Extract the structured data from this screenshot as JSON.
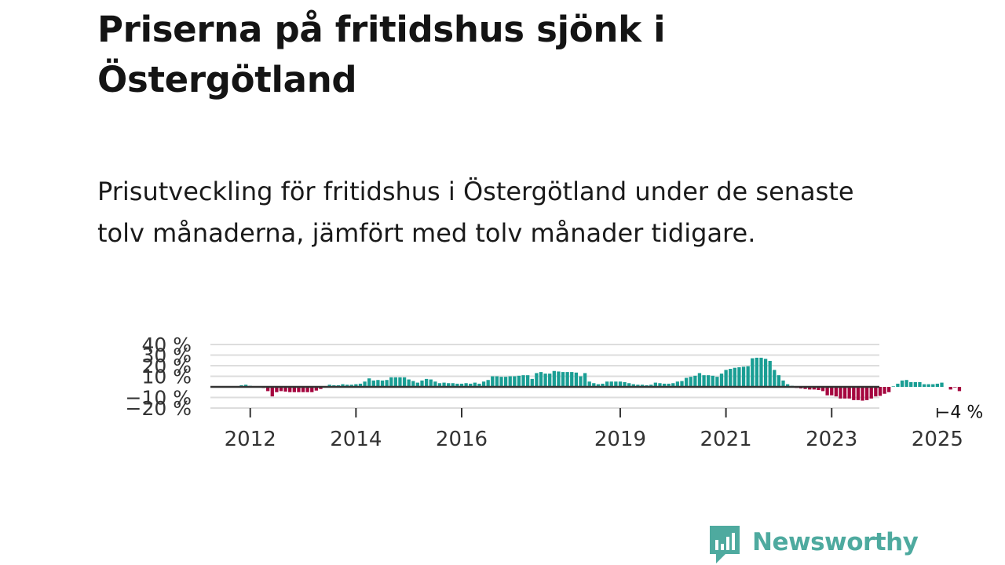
{
  "title": "Priserna på fritidshus sjönk i Östergötland",
  "subtitle": "Prisutveckling för fritidshus i Östergötland under de senaste tolv månaderna, jämfört med tolv månader tidigare.",
  "brand": {
    "name": "Newsworthy",
    "color": "#4eaa9f",
    "icon": "newsworthy-logo-icon"
  },
  "chart_data": {
    "type": "bar",
    "title": "",
    "xlabel": "",
    "ylabel": "",
    "ylim": [
      -20,
      40
    ],
    "y_ticks": [
      {
        "value": 40,
        "label": "40 %"
      },
      {
        "value": 30,
        "label": "30 %"
      },
      {
        "value": 20,
        "label": "20 %"
      },
      {
        "value": 10,
        "label": "10 %"
      },
      {
        "value": -10,
        "label": "−10 %"
      },
      {
        "value": -20,
        "label": "−20 %"
      }
    ],
    "x_ticks": [
      {
        "date": "2012-01",
        "label": "2012"
      },
      {
        "date": "2014-01",
        "label": "2014"
      },
      {
        "date": "2016-01",
        "label": "2016"
      },
      {
        "date": "2019-01",
        "label": "2019"
      },
      {
        "date": "2021-01",
        "label": "2021"
      },
      {
        "date": "2023-01",
        "label": "2023"
      },
      {
        "date": "2025-01",
        "label": "2025"
      }
    ],
    "start_month": "2011-11",
    "values": [
      1.5,
      2.0,
      1.0,
      0.5,
      0.0,
      -1.0,
      -4.0,
      -9.0,
      -5.0,
      -4.0,
      -4.5,
      -5.0,
      -5.0,
      -5.0,
      -5.0,
      -5.0,
      -5.0,
      -3.5,
      -2.0,
      0.5,
      2.0,
      1.5,
      1.5,
      2.5,
      2.0,
      2.0,
      2.5,
      3.0,
      5.0,
      8.0,
      6.0,
      6.5,
      6.0,
      6.5,
      9.0,
      9.0,
      9.0,
      9.0,
      7.0,
      5.5,
      4.0,
      6.0,
      7.5,
      7.0,
      5.0,
      3.5,
      4.0,
      3.5,
      3.5,
      3.0,
      3.0,
      3.5,
      3.0,
      4.0,
      3.0,
      5.0,
      6.5,
      10.0,
      10.0,
      9.5,
      9.5,
      10.0,
      10.0,
      10.5,
      11.0,
      11.0,
      7.5,
      13.0,
      14.0,
      12.5,
      12.5,
      15.0,
      14.5,
      14.0,
      14.0,
      14.0,
      13.5,
      10.0,
      13.0,
      5.0,
      3.5,
      2.5,
      3.0,
      5.0,
      5.0,
      5.0,
      5.0,
      4.5,
      3.5,
      2.5,
      2.0,
      2.0,
      1.5,
      2.0,
      4.0,
      3.5,
      3.0,
      3.0,
      3.5,
      5.0,
      5.5,
      8.5,
      9.5,
      10.5,
      13.0,
      11.0,
      11.0,
      10.5,
      9.5,
      12.5,
      16.0,
      17.0,
      18.0,
      18.5,
      19.0,
      19.5,
      27.0,
      27.5,
      27.5,
      26.5,
      24.5,
      16.0,
      11.0,
      6.0,
      2.5,
      1.0,
      -1.0,
      -1.5,
      -2.0,
      -2.5,
      -2.5,
      -3.0,
      -4.0,
      -8.0,
      -8.0,
      -9.0,
      -11.0,
      -11.0,
      -11.0,
      -12.5,
      -12.5,
      -13.0,
      -12.5,
      -11.0,
      -9.0,
      -8.5,
      -6.5,
      -5.0,
      0.5,
      3.0,
      6.0,
      6.5,
      4.5,
      4.5,
      4.5,
      2.5,
      2.5,
      2.5,
      3.0,
      4.0,
      0.0,
      -2.5,
      -0.5,
      -4.0
    ],
    "positive_color": "#1a9e94",
    "negative_color": "#a5063f",
    "grid": true,
    "annotations": [
      {
        "label": "−4 %",
        "at": "last"
      }
    ]
  }
}
